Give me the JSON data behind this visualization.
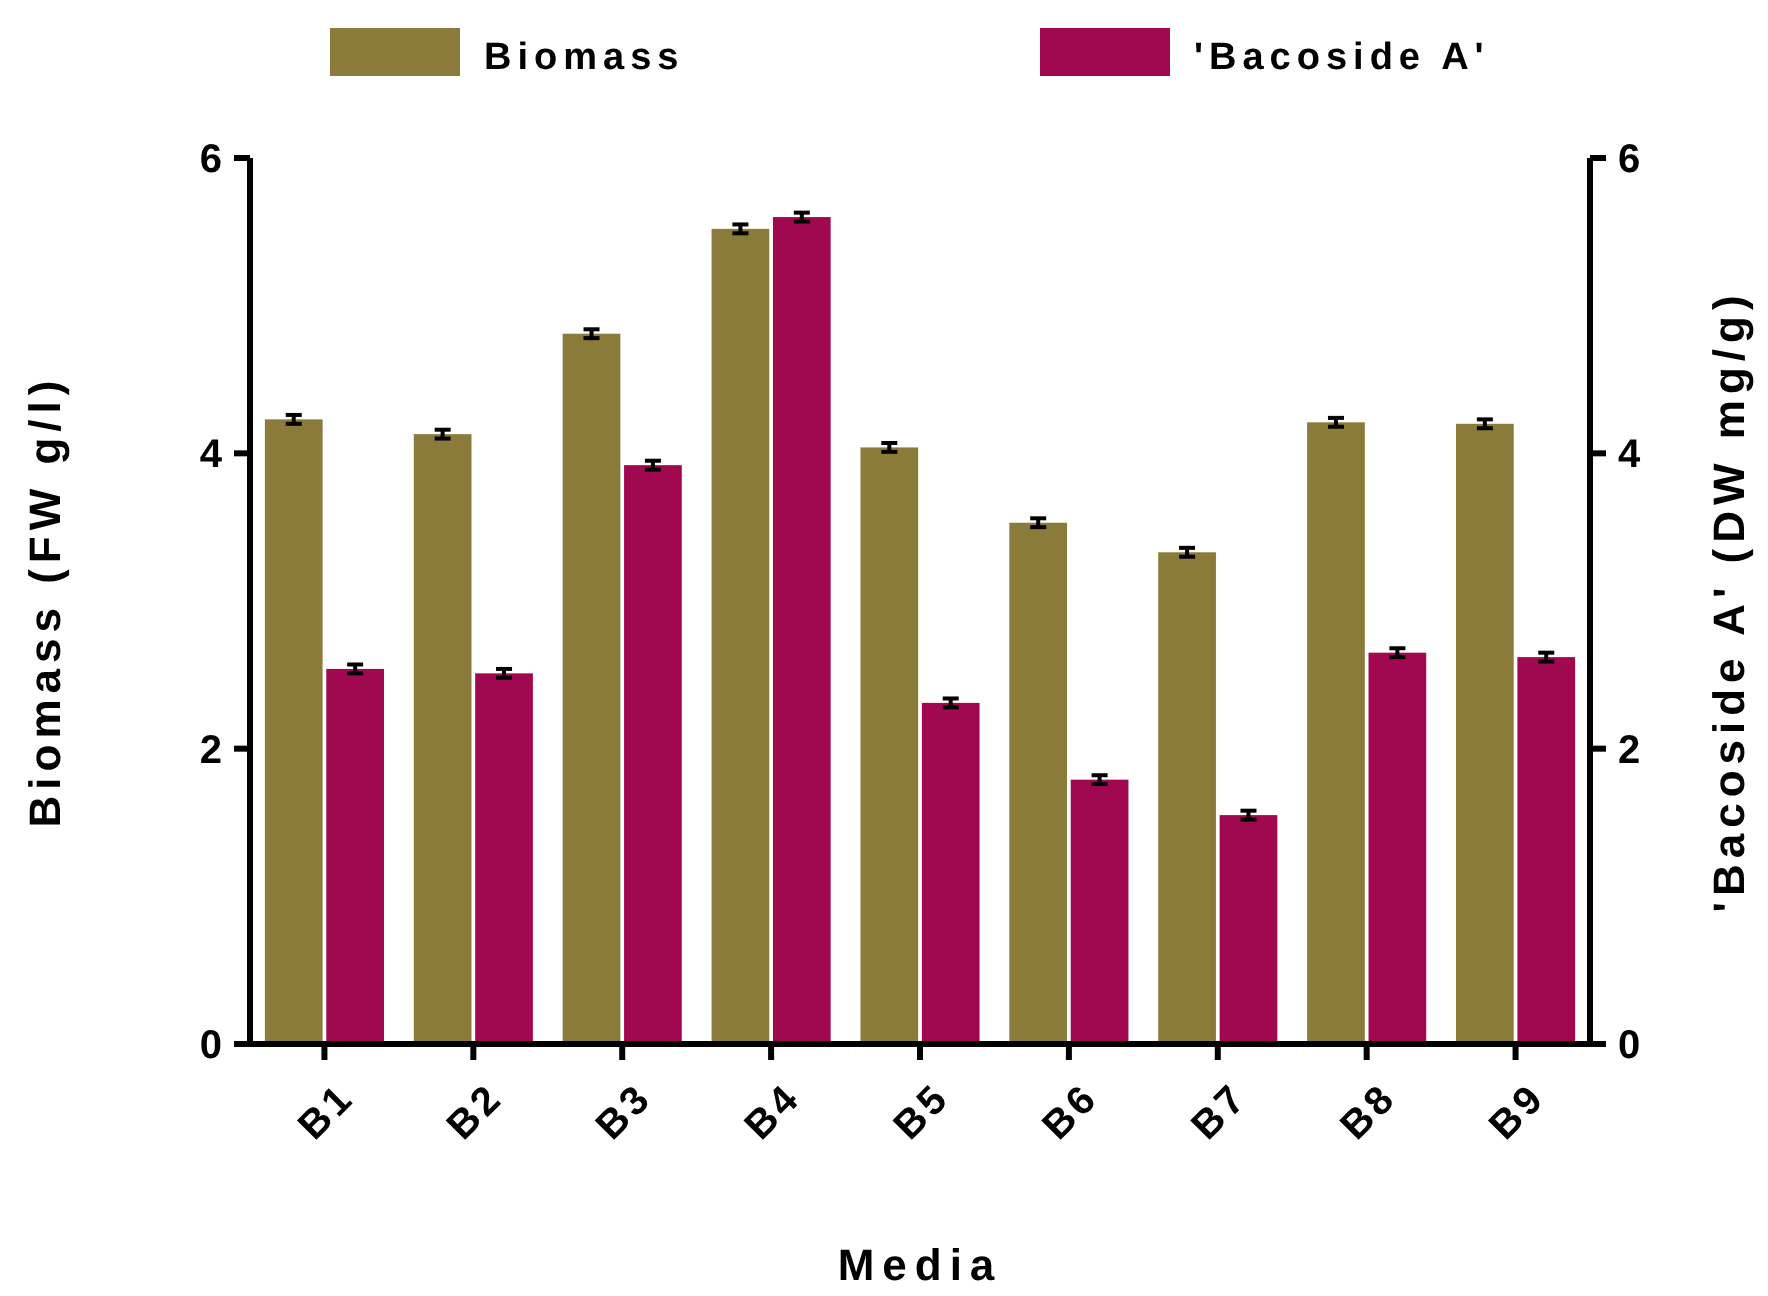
{
  "chart_data": {
    "type": "bar",
    "xlabel": "Media",
    "ylabel": "Biomass (FW g/l)",
    "y2label": "'Bacoside A' (DW mg/g)",
    "categories": [
      "B1",
      "B2",
      "B3",
      "B4",
      "B5",
      "B6",
      "B7",
      "B8",
      "B9"
    ],
    "series": [
      {
        "name": "Biomass",
        "color": "#8b7b3a",
        "values": [
          4.23,
          4.13,
          4.81,
          5.52,
          4.04,
          3.53,
          3.33,
          4.21,
          4.2
        ],
        "errors": [
          0.03,
          0.03,
          0.03,
          0.03,
          0.03,
          0.03,
          0.03,
          0.03,
          0.03
        ]
      },
      {
        "name": "'Bacoside A'",
        "color": "#a0084f",
        "axis": "y2",
        "values": [
          2.54,
          2.51,
          3.92,
          5.6,
          2.31,
          1.79,
          1.55,
          2.65,
          2.62
        ],
        "errors": [
          0.03,
          0.03,
          0.03,
          0.03,
          0.03,
          0.03,
          0.03,
          0.03,
          0.03
        ]
      }
    ],
    "ylim": [
      0,
      6
    ],
    "yticks": [
      0,
      2,
      4,
      6
    ],
    "y2lim": [
      0,
      6
    ],
    "y2ticks": [
      0,
      2,
      4,
      6
    ],
    "legend": "top",
    "grid": false
  }
}
